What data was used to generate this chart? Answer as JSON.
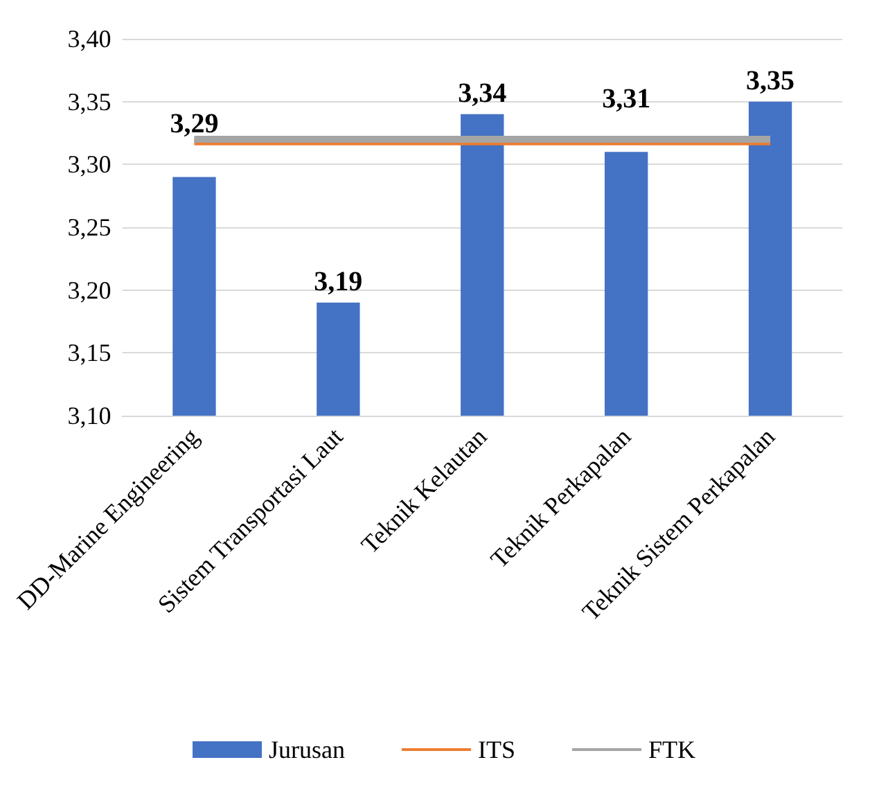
{
  "chart_data": {
    "type": "bar",
    "categories": [
      "DD-Marine Engineering",
      "Sistem Transportasi Laut",
      "Teknik Kelautan",
      "Teknik Perkapalan",
      "Teknik Sistem Perkapalan"
    ],
    "series": [
      {
        "name": "Jurusan",
        "color": "#4472c4",
        "values": [
          3.29,
          3.19,
          3.34,
          3.31,
          3.35
        ],
        "value_labels": [
          "3,29",
          "3,19",
          "3,34",
          "3,31",
          "3,35"
        ]
      },
      {
        "name": "ITS",
        "type": "line",
        "color": "#ed7d31",
        "values": [
          3.318,
          3.318,
          3.318,
          3.318,
          3.318
        ]
      },
      {
        "name": "FTK",
        "type": "line",
        "color": "#a5a5a5",
        "values": [
          3.32,
          3.32,
          3.32,
          3.32,
          3.32
        ]
      }
    ],
    "ylim": [
      3.1,
      3.4
    ],
    "yticks": [
      {
        "value": 3.1,
        "label": "3,10"
      },
      {
        "value": 3.15,
        "label": "3,15"
      },
      {
        "value": 3.2,
        "label": "3,20"
      },
      {
        "value": 3.25,
        "label": "3,25"
      },
      {
        "value": 3.3,
        "label": "3,30"
      },
      {
        "value": 3.35,
        "label": "3,35"
      },
      {
        "value": 3.4,
        "label": "3,40"
      }
    ],
    "grid": "y",
    "legend": "bottom",
    "marker": "none",
    "line_style": "solid"
  }
}
